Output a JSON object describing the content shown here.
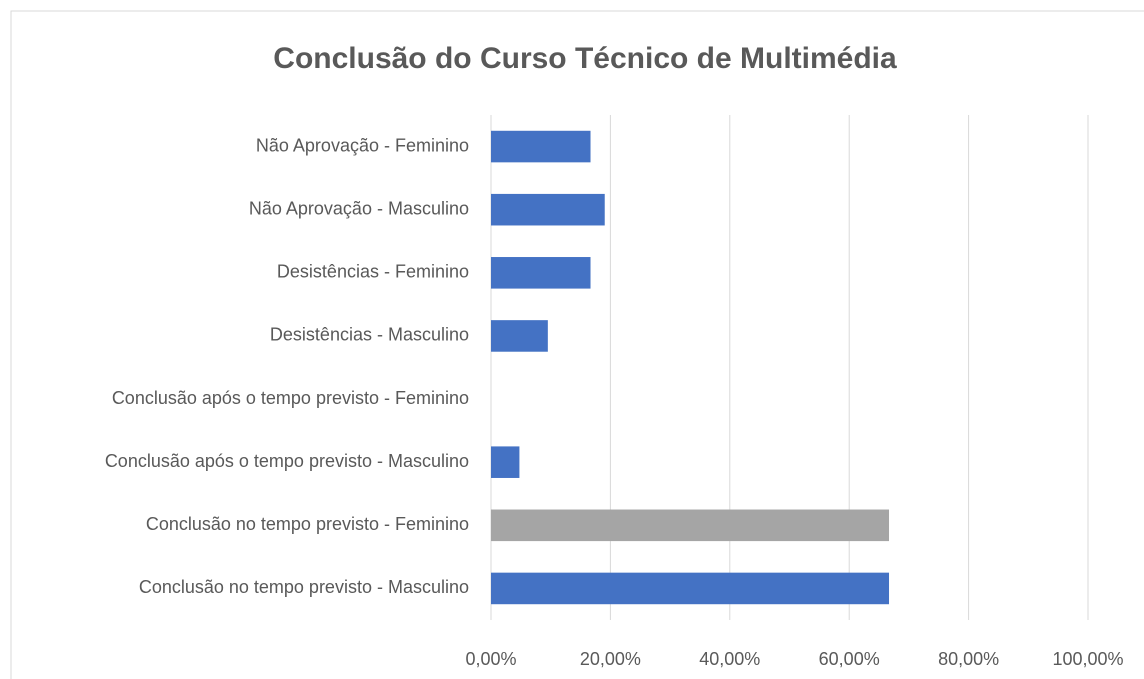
{
  "chart_data": {
    "type": "hbar",
    "title": "Conclusão do Curso Técnico de Multimédia",
    "categories": [
      "Não Aprovação - Feminino",
      "Não Aprovação - Masculino",
      "Desistências - Feminino",
      "Desistências - Masculino",
      "Conclusão após o tempo previsto - Feminino",
      "Conclusão após o tempo previsto - Masculino",
      "Conclusão no tempo previsto - Feminino",
      "Conclusão no tempo previsto - Masculino"
    ],
    "values": [
      0.1667,
      0.1905,
      0.1667,
      0.0952,
      0,
      0.0476,
      0.6667,
      0.6667
    ],
    "colors": [
      "#4472c4",
      "#4472c4",
      "#4472c4",
      "#4472c4",
      "#4472c4",
      "#4472c4",
      "#a5a5a5",
      "#4472c4"
    ],
    "xlim": [
      0,
      1
    ],
    "xticks": [
      {
        "value": 0,
        "label": "0,00%"
      },
      {
        "value": 0.2,
        "label": "20,00%"
      },
      {
        "value": 0.4,
        "label": "40,00%"
      },
      {
        "value": 0.6,
        "label": "60,00%"
      },
      {
        "value": 0.8,
        "label": "80,00%"
      },
      {
        "value": 1,
        "label": "100,00%"
      }
    ],
    "grid": true
  }
}
